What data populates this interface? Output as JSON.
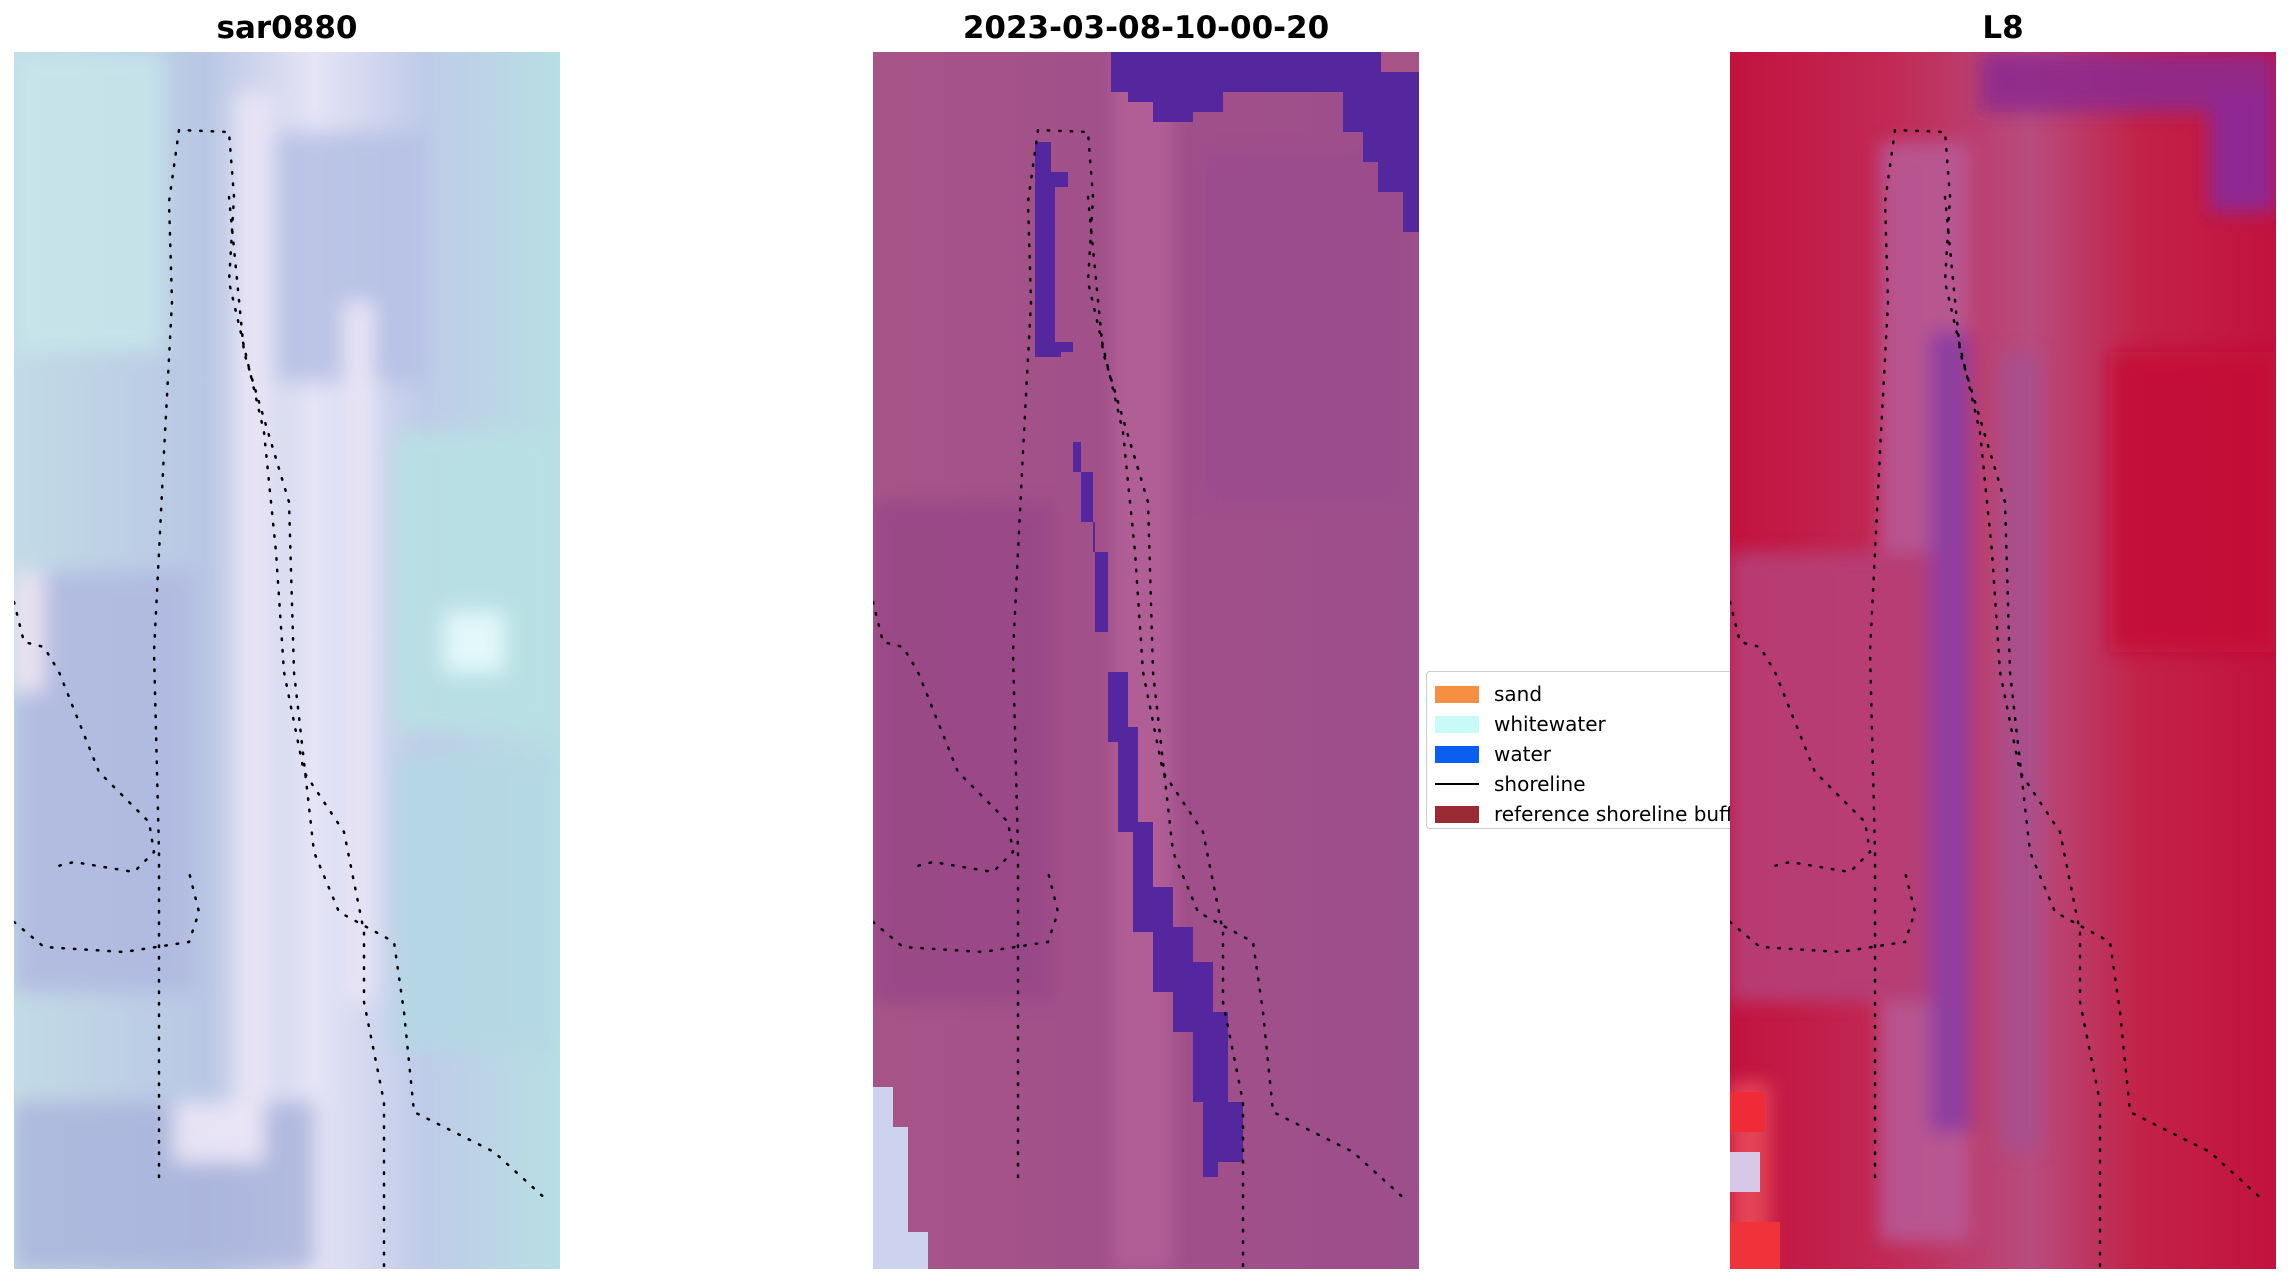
{
  "panels": [
    {
      "title": "sar0880",
      "style": "pale-lilac-cyan composite"
    },
    {
      "title": "2023-03-08-10-00-20",
      "style": "magenta classification overlay"
    },
    {
      "title": "L8",
      "style": "crimson composite"
    }
  ],
  "legend": {
    "items": [
      {
        "label": "sand",
        "kind": "patch",
        "color": "#f68f42"
      },
      {
        "label": "whitewater",
        "kind": "patch",
        "color": "#c8faf8"
      },
      {
        "label": "water",
        "kind": "patch",
        "color": "#0a5ff0"
      },
      {
        "label": "shoreline",
        "kind": "line",
        "color": "#000000"
      },
      {
        "label": "reference shoreline buffer",
        "kind": "patch",
        "color": "#9a2a34"
      }
    ]
  },
  "colors": {
    "water_class": "#55279e",
    "shoreline_dots": "#000000"
  }
}
